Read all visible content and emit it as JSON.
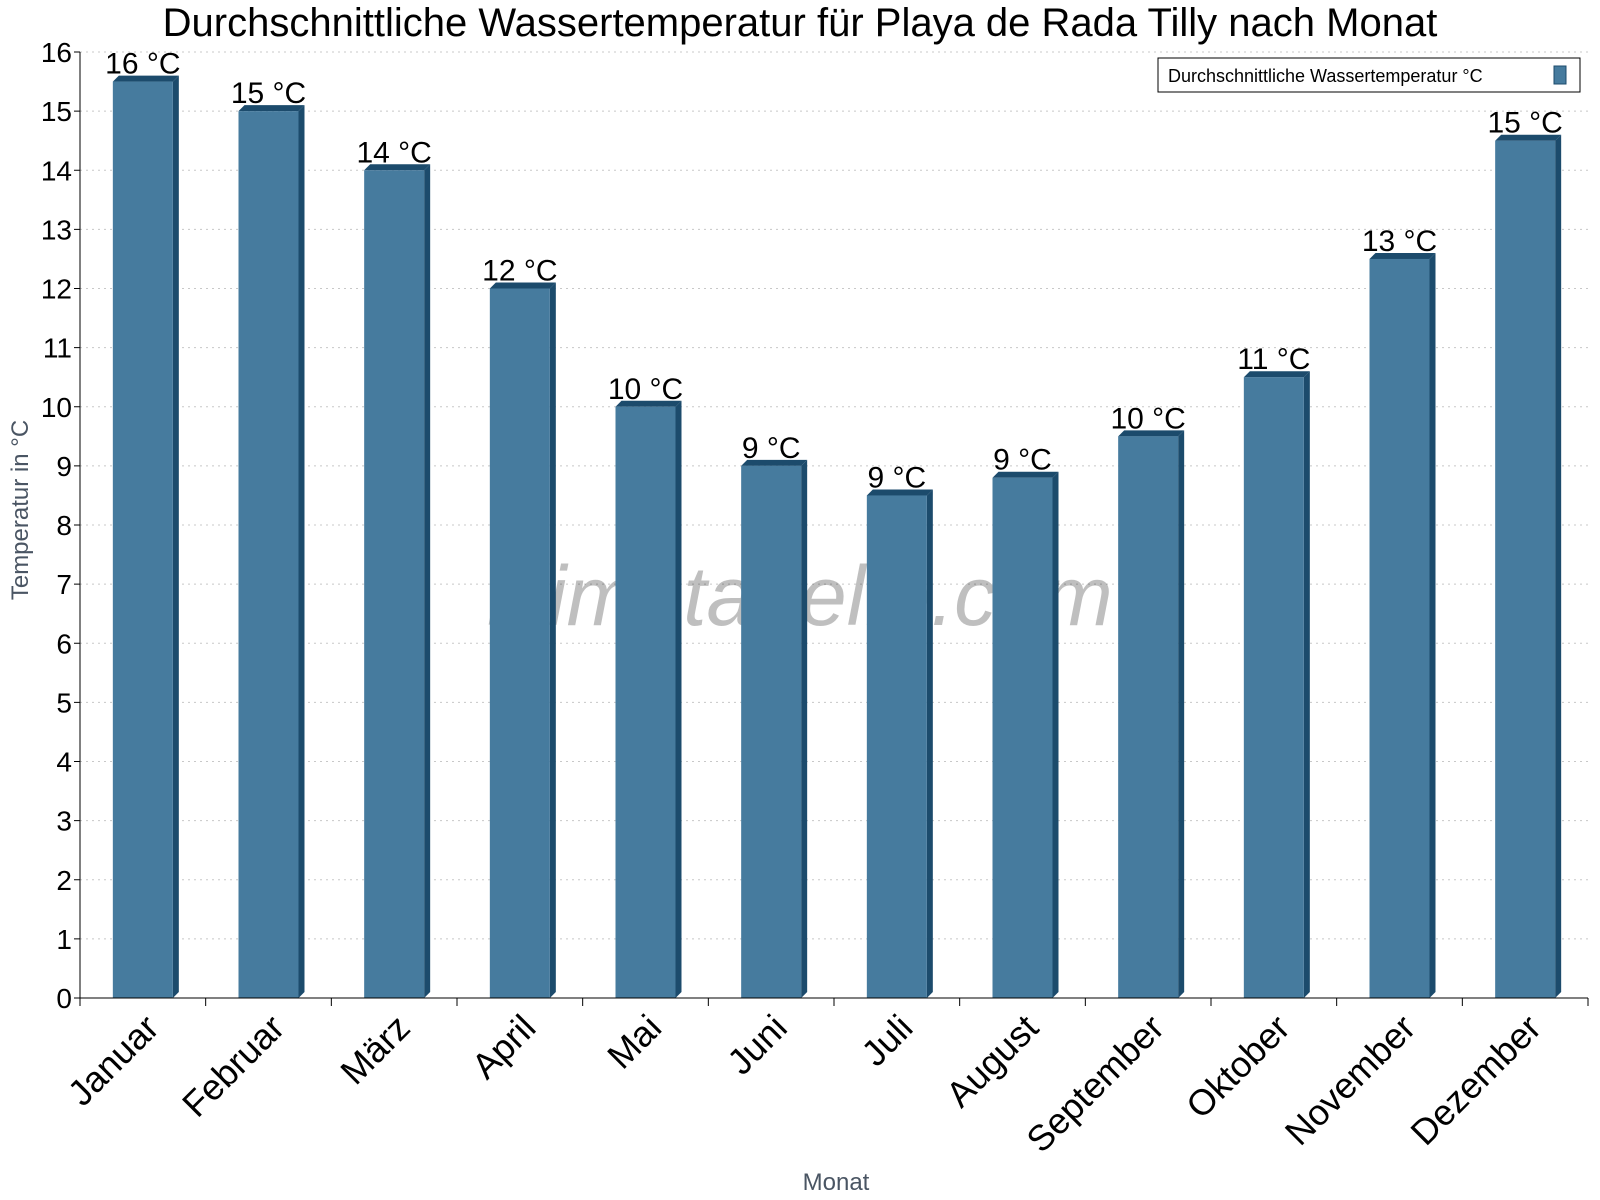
{
  "chart_data": {
    "type": "bar",
    "title": "Durchschnittliche Wassertemperatur für Playa de Rada Tilly nach Monat",
    "xlabel": "Monat",
    "ylabel": "Temperatur in °C",
    "categories": [
      "Januar",
      "Februar",
      "März",
      "April",
      "Mai",
      "Juni",
      "Juli",
      "August",
      "September",
      "Oktober",
      "November",
      "Dezember"
    ],
    "series": [
      {
        "name": "Durchschnittliche Wassertemperatur °C",
        "values": [
          15.5,
          15.0,
          14.0,
          12.0,
          10.0,
          9.0,
          8.5,
          8.8,
          9.5,
          10.5,
          12.5,
          14.5
        ],
        "labels": [
          "16 °C",
          "15 °C",
          "14 °C",
          "12 °C",
          "10 °C",
          "9 °C",
          "9 °C",
          "9 °C",
          "10 °C",
          "11 °C",
          "13 °C",
          "15 °C"
        ],
        "color": "#467b9e",
        "shade_color": "#1c4b6c"
      }
    ],
    "ylim": [
      0,
      16
    ],
    "yticks": [
      0,
      1,
      2,
      3,
      4,
      5,
      6,
      7,
      8,
      9,
      10,
      11,
      12,
      13,
      14,
      15,
      16
    ],
    "grid": true,
    "legend_position": "top-right",
    "watermark": "klimatabelle.com"
  }
}
